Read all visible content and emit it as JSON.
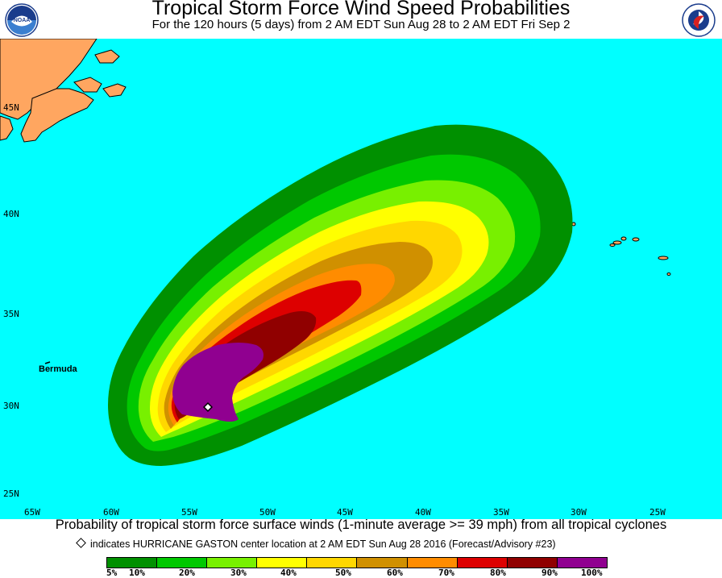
{
  "header": {
    "title": "Tropical Storm Force Wind Speed Probabilities",
    "subtitle": "For the 120 hours (5 days) from 2 AM EDT Sun Aug 28 to 2 AM EDT Fri Sep 2"
  },
  "logos": {
    "left": "noaa-logo",
    "right": "national-weather-service-logo"
  },
  "colors": {
    "ocean": "#00ffff",
    "land": "#ffa660",
    "coast": "#000000",
    "p5": "#009000",
    "p10": "#00c800",
    "p20": "#78f000",
    "p30": "#ffff00",
    "p40": "#ffd700",
    "p50": "#d09000",
    "p60": "#ff8c00",
    "p70": "#dd0000",
    "p80": "#900000",
    "p90": "#900090",
    "marker": "#ffffff"
  },
  "map": {
    "latitude_labels": [
      "45N",
      "40N",
      "35N",
      "30N",
      "25N"
    ],
    "longitude_labels": [
      "65W",
      "60W",
      "55W",
      "50W",
      "45W",
      "40W",
      "35W",
      "30W",
      "25W"
    ],
    "place_labels": [
      "Bermuda"
    ]
  },
  "footer": {
    "caption": "Probability of tropical storm force surface winds (1-minute average >= 39 mph) from all tropical cyclones",
    "marker_note": "indicates HURRICANE GASTON center location at 2 AM EDT Sun Aug 28 2016 (Forecast/Advisory #23)",
    "legend_labels": [
      "5%",
      "10%",
      "20%",
      "30%",
      "40%",
      "50%",
      "60%",
      "70%",
      "80%",
      "90%",
      "100%"
    ]
  }
}
